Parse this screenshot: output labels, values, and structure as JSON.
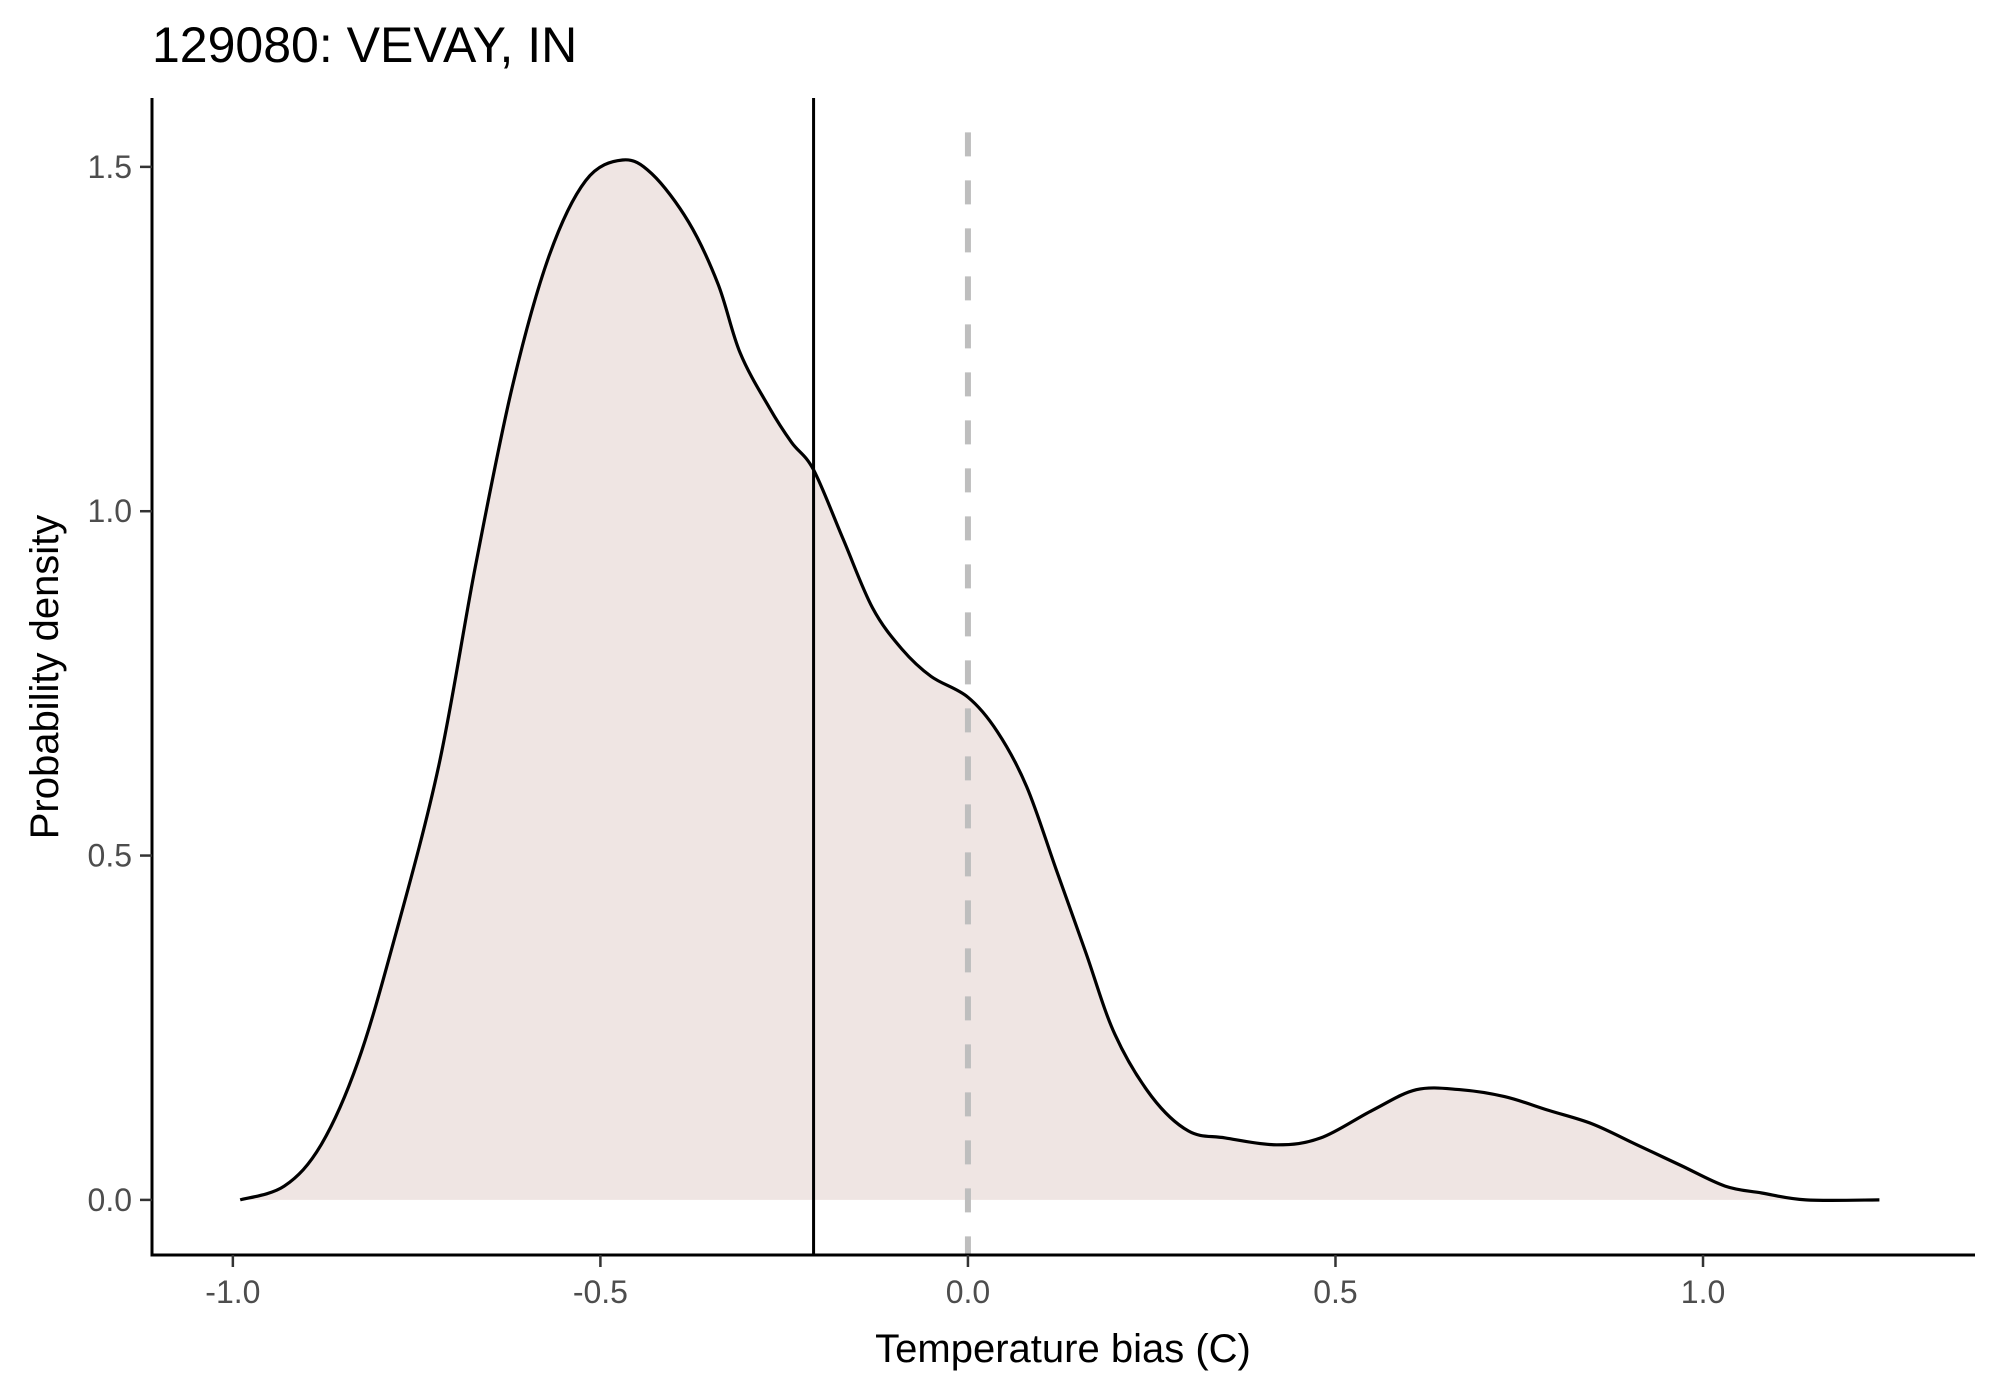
{
  "chart_data": {
    "type": "area",
    "title": "129080: VEVAY, IN",
    "xlabel": "Temperature bias (C)",
    "ylabel": "Probability density",
    "xlim": [
      -1.11,
      1.37
    ],
    "ylim": [
      -0.08,
      1.6
    ],
    "x_ticks": [
      -1.0,
      -0.5,
      0.0,
      0.5,
      1.0
    ],
    "x_tick_labels": [
      "-1.0",
      "-0.5",
      "0.0",
      "0.5",
      "1.0"
    ],
    "y_ticks": [
      0.0,
      0.5,
      1.0,
      1.5
    ],
    "y_tick_labels": [
      "0.0",
      "0.5",
      "1.0",
      "1.5"
    ],
    "grid": false,
    "fill_color": "#efe5e3",
    "line_color": "#000000",
    "reference_line_color": "#bebebe",
    "density": {
      "x": [
        -0.99,
        -0.93,
        -0.88,
        -0.83,
        -0.78,
        -0.72,
        -0.67,
        -0.62,
        -0.57,
        -0.52,
        -0.47,
        -0.43,
        -0.38,
        -0.34,
        -0.31,
        -0.27,
        -0.24,
        -0.21,
        -0.17,
        -0.13,
        -0.09,
        -0.05,
        0.0,
        0.04,
        0.08,
        0.12,
        0.16,
        0.2,
        0.25,
        0.3,
        0.35,
        0.42,
        0.48,
        0.55,
        0.61,
        0.67,
        0.73,
        0.79,
        0.85,
        0.91,
        0.97,
        1.03,
        1.08,
        1.14,
        1.24
      ],
      "y": [
        0.0,
        0.02,
        0.08,
        0.2,
        0.38,
        0.63,
        0.92,
        1.18,
        1.37,
        1.48,
        1.51,
        1.49,
        1.42,
        1.33,
        1.23,
        1.15,
        1.1,
        1.06,
        0.96,
        0.86,
        0.8,
        0.76,
        0.73,
        0.68,
        0.6,
        0.48,
        0.36,
        0.24,
        0.15,
        0.1,
        0.09,
        0.08,
        0.09,
        0.13,
        0.16,
        0.16,
        0.15,
        0.13,
        0.11,
        0.08,
        0.05,
        0.02,
        0.01,
        0.0,
        0.0
      ]
    },
    "vlines": [
      {
        "name": "mean",
        "x": -0.21,
        "style": "solid"
      },
      {
        "name": "zero",
        "x": 0.0,
        "style": "dashed"
      }
    ]
  }
}
